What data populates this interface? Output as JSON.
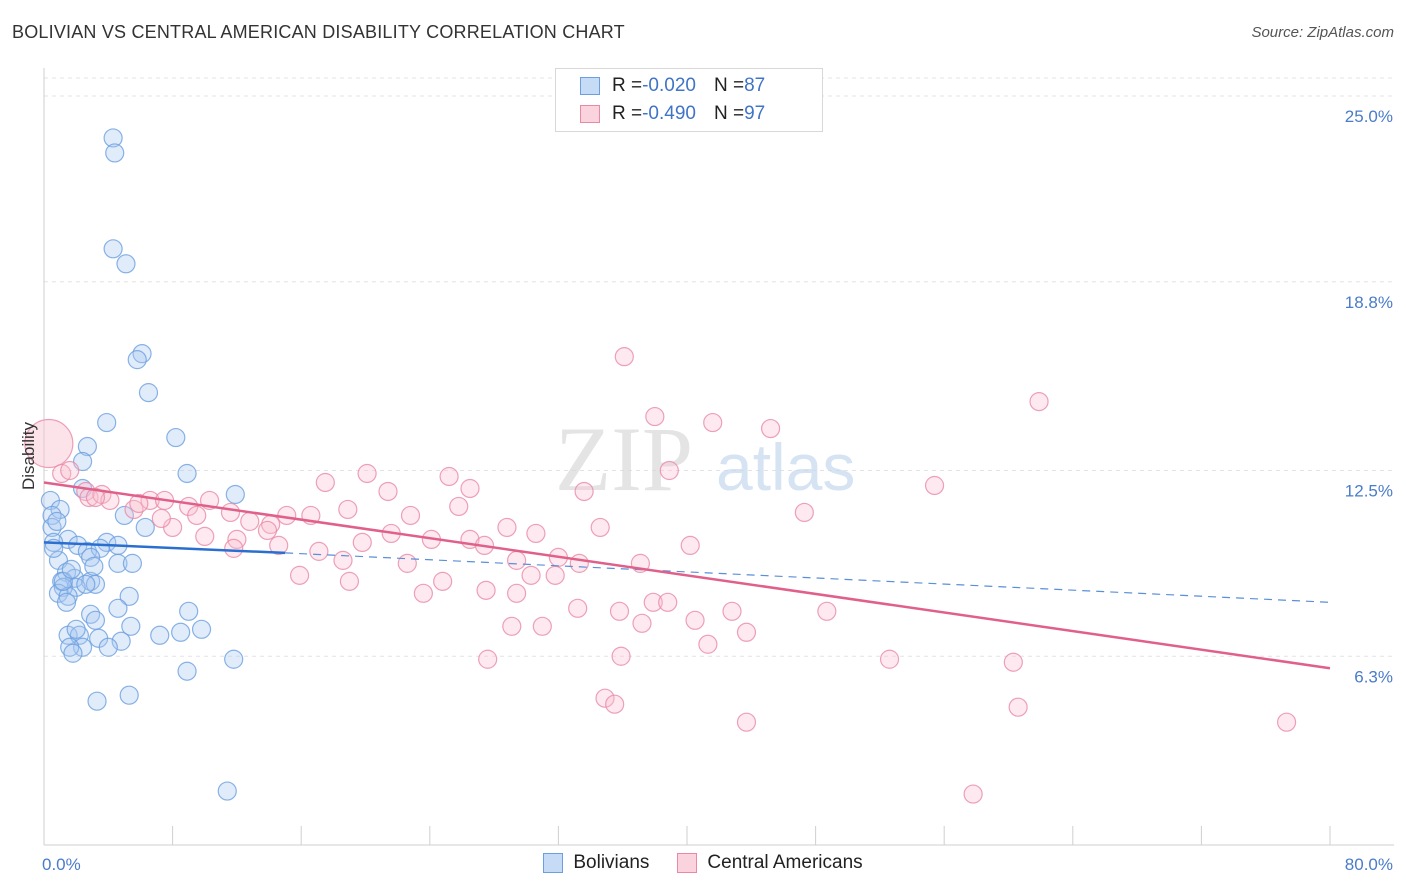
{
  "header": {
    "title": "BOLIVIAN VS CENTRAL AMERICAN DISABILITY CORRELATION CHART",
    "source": "Source: ZipAtlas.com"
  },
  "watermark": {
    "zip": "ZIP",
    "atlas": "atlas"
  },
  "legend": {
    "rows": [
      {
        "r_label": "R = ",
        "r_value": "-0.020",
        "n_label": "N = ",
        "n_value": "87",
        "color": "#a9c8f0",
        "border": "#6c9fe0"
      },
      {
        "r_label": "R = ",
        "r_value": "-0.490",
        "n_label": "N = ",
        "n_value": "97",
        "color": "#f8c0d0",
        "border": "#e88aa6"
      }
    ]
  },
  "bottom_legend": {
    "items": [
      {
        "label": "Bolivians",
        "color": "#c5dbf6",
        "border": "#6c9fe0"
      },
      {
        "label": "Central Americans",
        "color": "#fbd3df",
        "border": "#e88aa6"
      }
    ]
  },
  "chart_data": {
    "type": "scatter",
    "title": "BOLIVIAN VS CENTRAL AMERICAN DISABILITY CORRELATION CHART",
    "xlabel": "",
    "ylabel": "Disability",
    "xlim": [
      0,
      80
    ],
    "ylim": [
      0,
      26.5
    ],
    "x_tick_labels": [
      "0.0%",
      "80.0%"
    ],
    "y_ticks": [
      6.3,
      12.5,
      18.8,
      25.0
    ],
    "y_tick_labels": [
      "6.3%",
      "12.5%",
      "18.8%",
      "25.0%"
    ],
    "grid": "horizontal dashed",
    "legend_position": "top-center",
    "series": [
      {
        "name": "Bolivians",
        "color": "#6c9fe0",
        "fill": "#a9c8f0",
        "r": -0.02,
        "n": 87,
        "trend": {
          "x0": 0,
          "y0": 10.1,
          "x1": 15,
          "y1": 9.75,
          "dash_to_x": 80,
          "dash_to_y": 8.1
        },
        "points": [
          [
            4.3,
            23.6
          ],
          [
            4.4,
            23.1
          ],
          [
            4.3,
            19.9
          ],
          [
            5.1,
            19.4
          ],
          [
            6.1,
            16.4
          ],
          [
            5.8,
            16.2
          ],
          [
            6.5,
            15.1
          ],
          [
            3.9,
            14.1
          ],
          [
            8.2,
            13.6
          ],
          [
            2.7,
            13.3
          ],
          [
            2.4,
            12.8
          ],
          [
            8.9,
            12.4
          ],
          [
            2.4,
            11.9
          ],
          [
            11.9,
            11.7
          ],
          [
            0.4,
            11.5
          ],
          [
            1.0,
            11.2
          ],
          [
            0.5,
            11.0
          ],
          [
            5.0,
            11.0
          ],
          [
            0.5,
            10.6
          ],
          [
            6.3,
            10.6
          ],
          [
            1.5,
            10.2
          ],
          [
            2.1,
            10.0
          ],
          [
            3.9,
            10.1
          ],
          [
            4.6,
            10.0
          ],
          [
            0.6,
            10.1
          ],
          [
            2.7,
            9.8
          ],
          [
            3.5,
            9.9
          ],
          [
            0.9,
            9.5
          ],
          [
            2.9,
            9.6
          ],
          [
            4.6,
            9.4
          ],
          [
            5.5,
            9.4
          ],
          [
            1.4,
            9.1
          ],
          [
            1.9,
            8.9
          ],
          [
            1.1,
            8.8
          ],
          [
            2.9,
            8.8
          ],
          [
            3.2,
            8.7
          ],
          [
            2.0,
            8.6
          ],
          [
            1.2,
            8.6
          ],
          [
            0.9,
            8.4
          ],
          [
            1.5,
            8.3
          ],
          [
            5.3,
            8.3
          ],
          [
            4.6,
            7.9
          ],
          [
            2.9,
            7.7
          ],
          [
            9.0,
            7.8
          ],
          [
            3.2,
            7.5
          ],
          [
            5.4,
            7.3
          ],
          [
            8.5,
            7.1
          ],
          [
            9.8,
            7.2
          ],
          [
            1.5,
            7.0
          ],
          [
            2.2,
            7.0
          ],
          [
            3.4,
            6.9
          ],
          [
            7.2,
            7.0
          ],
          [
            4.8,
            6.8
          ],
          [
            2.4,
            6.6
          ],
          [
            4.0,
            6.6
          ],
          [
            1.6,
            6.6
          ],
          [
            11.8,
            6.2
          ],
          [
            1.8,
            6.4
          ],
          [
            8.9,
            5.8
          ],
          [
            5.3,
            5.0
          ],
          [
            3.3,
            4.8
          ],
          [
            11.4,
            1.8
          ],
          [
            1.2,
            8.8
          ],
          [
            2.6,
            8.7
          ],
          [
            0.6,
            9.9
          ],
          [
            1.7,
            9.2
          ],
          [
            3.1,
            9.3
          ],
          [
            0.8,
            10.8
          ],
          [
            1.4,
            8.1
          ],
          [
            2.0,
            7.2
          ]
        ]
      },
      {
        "name": "Central Americans",
        "color": "#e88aa6",
        "fill": "#f8c0d0",
        "r": -0.49,
        "n": 97,
        "trend": {
          "x0": 0,
          "y0": 12.1,
          "x1": 80,
          "y1": 5.9
        },
        "points": [
          [
            0.3,
            13.4
          ],
          [
            1.1,
            12.4
          ],
          [
            1.6,
            12.5
          ],
          [
            2.6,
            11.8
          ],
          [
            2.8,
            11.6
          ],
          [
            3.6,
            11.7
          ],
          [
            4.1,
            11.5
          ],
          [
            5.6,
            11.2
          ],
          [
            6.6,
            11.5
          ],
          [
            7.5,
            11.5
          ],
          [
            9.0,
            11.3
          ],
          [
            10.3,
            11.5
          ],
          [
            11.6,
            11.1
          ],
          [
            12.8,
            10.8
          ],
          [
            14.1,
            10.7
          ],
          [
            15.1,
            11.0
          ],
          [
            16.6,
            11.0
          ],
          [
            17.5,
            12.1
          ],
          [
            18.9,
            11.2
          ],
          [
            20.1,
            12.4
          ],
          [
            21.4,
            11.8
          ],
          [
            22.8,
            11.0
          ],
          [
            25.2,
            12.3
          ],
          [
            25.8,
            11.3
          ],
          [
            26.5,
            11.9
          ],
          [
            8.0,
            10.6
          ],
          [
            10.0,
            10.3
          ],
          [
            12.0,
            10.2
          ],
          [
            13.9,
            10.5
          ],
          [
            14.6,
            10.0
          ],
          [
            17.1,
            9.8
          ],
          [
            18.6,
            9.5
          ],
          [
            19.8,
            10.1
          ],
          [
            21.6,
            10.4
          ],
          [
            22.6,
            9.4
          ],
          [
            24.1,
            10.2
          ],
          [
            26.5,
            10.2
          ],
          [
            27.4,
            10.0
          ],
          [
            29.4,
            9.5
          ],
          [
            30.6,
            10.4
          ],
          [
            32.0,
            9.6
          ],
          [
            33.3,
            9.4
          ],
          [
            34.6,
            10.6
          ],
          [
            37.1,
            9.4
          ],
          [
            23.6,
            8.4
          ],
          [
            24.8,
            8.8
          ],
          [
            27.5,
            8.5
          ],
          [
            29.4,
            8.4
          ],
          [
            30.3,
            9.0
          ],
          [
            31.8,
            9.0
          ],
          [
            19.0,
            8.8
          ],
          [
            15.9,
            9.0
          ],
          [
            33.2,
            7.9
          ],
          [
            35.8,
            7.8
          ],
          [
            37.9,
            8.1
          ],
          [
            38.8,
            8.1
          ],
          [
            40.5,
            7.5
          ],
          [
            42.8,
            7.8
          ],
          [
            48.7,
            7.8
          ],
          [
            37.2,
            7.4
          ],
          [
            29.1,
            7.3
          ],
          [
            31.0,
            7.3
          ],
          [
            43.7,
            7.1
          ],
          [
            41.3,
            6.7
          ],
          [
            27.6,
            6.2
          ],
          [
            35.9,
            6.3
          ],
          [
            52.6,
            6.2
          ],
          [
            60.3,
            6.1
          ],
          [
            34.9,
            4.9
          ],
          [
            35.5,
            4.7
          ],
          [
            43.7,
            4.1
          ],
          [
            60.6,
            4.6
          ],
          [
            77.3,
            4.1
          ],
          [
            57.8,
            1.7
          ],
          [
            36.1,
            16.3
          ],
          [
            38.0,
            14.3
          ],
          [
            41.6,
            14.1
          ],
          [
            45.2,
            13.9
          ],
          [
            61.9,
            14.8
          ],
          [
            38.9,
            12.5
          ],
          [
            55.4,
            12.0
          ],
          [
            47.3,
            11.1
          ],
          [
            33.6,
            11.8
          ],
          [
            40.2,
            10.0
          ],
          [
            28.8,
            10.6
          ],
          [
            11.8,
            9.9
          ],
          [
            9.5,
            11.0
          ],
          [
            7.3,
            10.9
          ],
          [
            5.9,
            11.4
          ],
          [
            3.2,
            11.6
          ]
        ]
      }
    ]
  }
}
